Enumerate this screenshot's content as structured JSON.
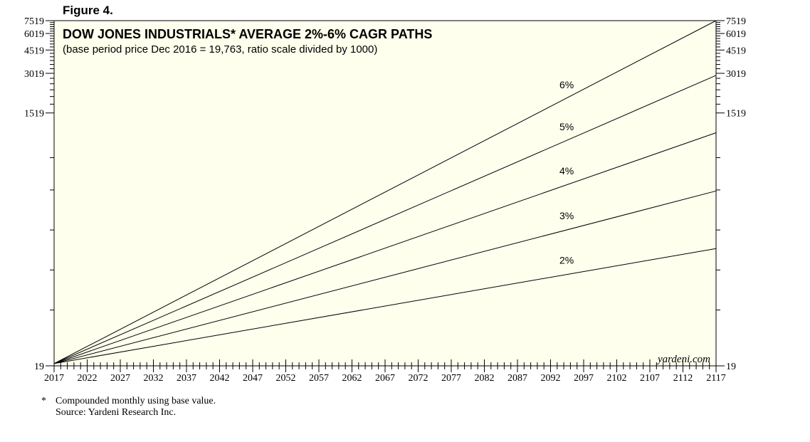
{
  "figure_label": "Figure 4.",
  "footnote": {
    "mark": "*",
    "note": "Compounded monthly using base value.",
    "source": "Source: Yardeni Research Inc."
  },
  "colors": {
    "plot_background": "#ffffee",
    "line": "#000000"
  },
  "chart_data": {
    "type": "line",
    "title": "DOW JONES INDUSTRIALS* AVERAGE 2%-6% CAGR PATHS",
    "subtitle": "(base period price Dec 2016 = 19,763, ratio scale divided by 1000)",
    "watermark": "yardeni.com",
    "y_scale": "log",
    "y_ticks": [
      19,
      1519,
      3019,
      4519,
      6019,
      7519
    ],
    "y_tick_labels": [
      "19",
      "1519",
      "3019",
      "4519",
      "6019",
      "7519"
    ],
    "x_tick_labels": [
      "2017",
      "2022",
      "2027",
      "2032",
      "2037",
      "2042",
      "2047",
      "2052",
      "2057",
      "2062",
      "2067",
      "2072",
      "2077",
      "2082",
      "2087",
      "2092",
      "2097",
      "2102",
      "2107",
      "2112",
      "2117"
    ],
    "xlim": [
      2017,
      2117
    ],
    "ylim": [
      19,
      7519
    ],
    "series": [
      {
        "name": "6%",
        "x": [
          2017,
          2117
        ],
        "y": [
          19.763,
          7519
        ]
      },
      {
        "name": "5%",
        "x": [
          2017,
          2117
        ],
        "y": [
          19.763,
          2913
        ]
      },
      {
        "name": "4%",
        "x": [
          2017,
          2117
        ],
        "y": [
          19.763,
          1078
        ]
      },
      {
        "name": "3%",
        "x": [
          2017,
          2117
        ],
        "y": [
          19.763,
          393
        ]
      },
      {
        "name": "2%",
        "x": [
          2017,
          2117
        ],
        "y": [
          19.763,
          145
        ]
      }
    ],
    "grid": false,
    "legend": "inline labels"
  }
}
